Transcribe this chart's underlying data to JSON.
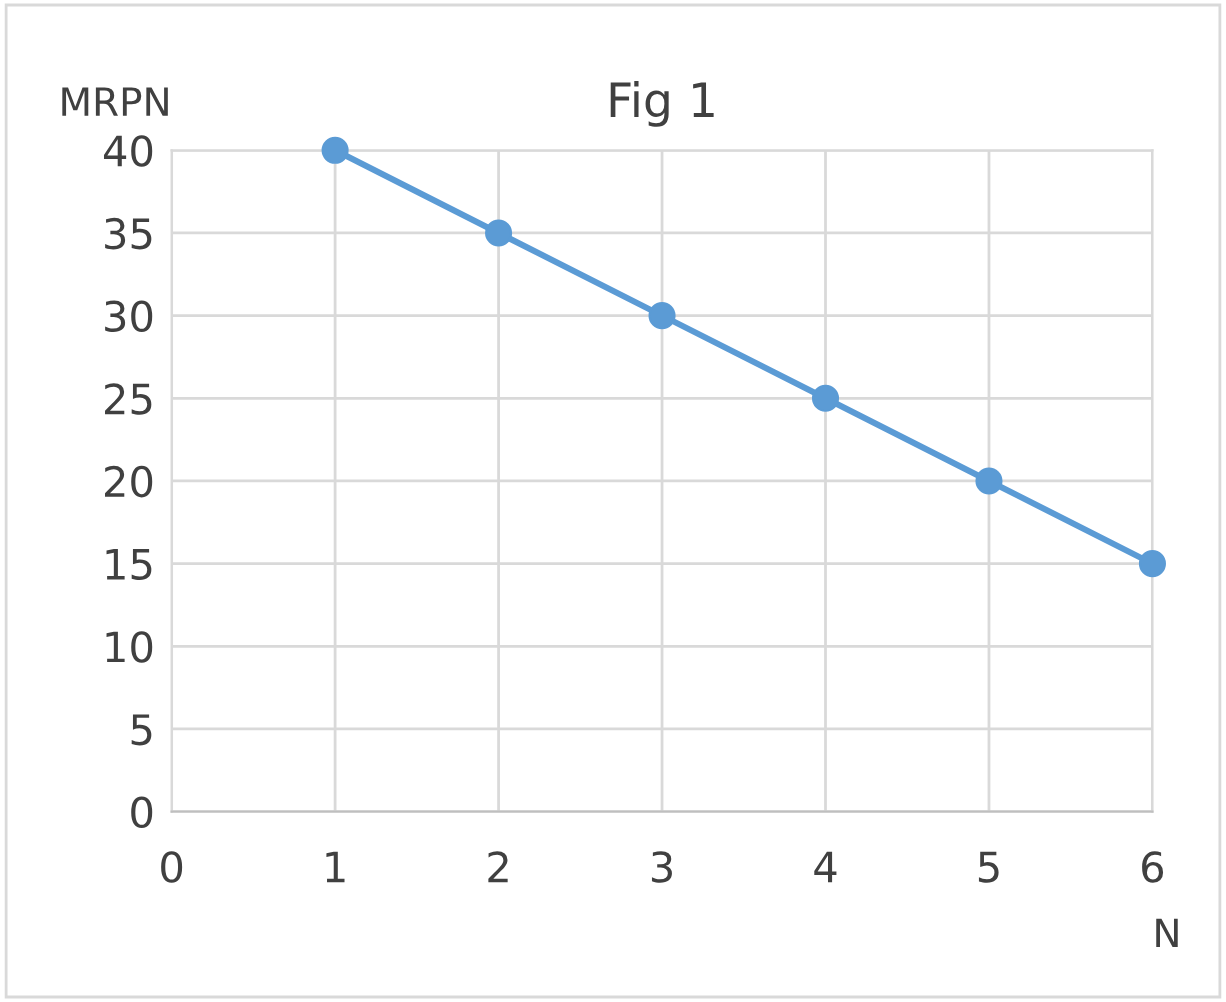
{
  "chart_data": {
    "type": "line",
    "title": "Fig 1",
    "xlabel": "N",
    "ylabel": "MRPN",
    "x": [
      1,
      2,
      3,
      4,
      5,
      6
    ],
    "series": [
      {
        "color": "#5b9bd5",
        "values": [
          40,
          35,
          30,
          25,
          20,
          15
        ]
      }
    ],
    "xlim": [
      0,
      6
    ],
    "xticks": [
      0,
      1,
      2,
      3,
      4,
      5,
      6
    ],
    "ylim": [
      0,
      40
    ],
    "yticks": [
      0,
      5,
      10,
      15,
      20,
      25,
      30,
      35,
      40
    ],
    "grid": true,
    "marker": "circle",
    "line_style": "solid"
  }
}
